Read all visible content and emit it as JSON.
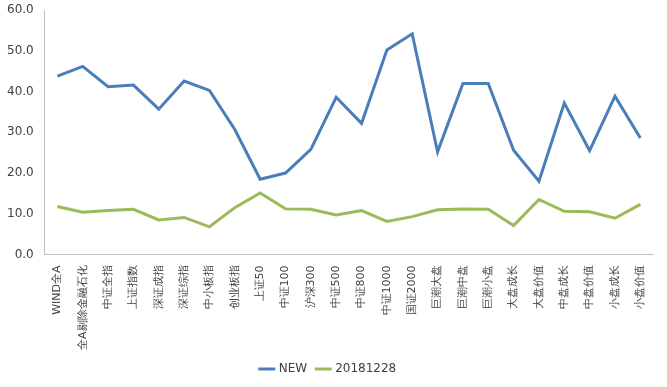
{
  "chart_data": {
    "type": "line",
    "categories": [
      "WIND全A",
      "全A剔除金融石化",
      "中证全指",
      "上证指数",
      "深证成指",
      "深证综指",
      "中小板指",
      "创业板指",
      "上证50",
      "中证100",
      "沪深300",
      "中证500",
      "中证800",
      "中证1000",
      "国证2000",
      "巨潮大盘",
      "巨潮中盘",
      "巨潮小盘",
      "大盘成长",
      "大盘价值",
      "中盘成长",
      "中盘价值",
      "小盘成长",
      "小盘价值"
    ],
    "series": [
      {
        "name": "NEW",
        "color": "#4a7ebb",
        "values": [
          43.8,
          46.2,
          41.2,
          41.6,
          35.7,
          42.6,
          40.3,
          30.7,
          18.5,
          20.0,
          25.8,
          38.6,
          32.2,
          50.2,
          54.2,
          25.2,
          42.0,
          42.0,
          25.6,
          18.0,
          37.2,
          25.5,
          38.9,
          28.6
        ]
      },
      {
        "name": "20181228",
        "color": "#9bbb59",
        "values": [
          11.8,
          10.4,
          10.8,
          11.1,
          8.5,
          9.1,
          6.8,
          11.5,
          15.1,
          11.2,
          11.1,
          9.7,
          10.8,
          8.1,
          9.3,
          11.0,
          11.2,
          11.1,
          7.1,
          13.5,
          10.6,
          10.5,
          8.9,
          12.3
        ]
      }
    ],
    "ylim": [
      0,
      60
    ],
    "yticks": [
      {
        "value": 0,
        "label": "0.0"
      },
      {
        "value": 10,
        "label": "10.0"
      },
      {
        "value": 20,
        "label": "20.0"
      },
      {
        "value": 30,
        "label": "30.0"
      },
      {
        "value": 40,
        "label": "40.0"
      },
      {
        "value": 50,
        "label": "50.0"
      },
      {
        "value": 60,
        "label": "60.0"
      }
    ],
    "grid": false,
    "legend": "bottom"
  }
}
